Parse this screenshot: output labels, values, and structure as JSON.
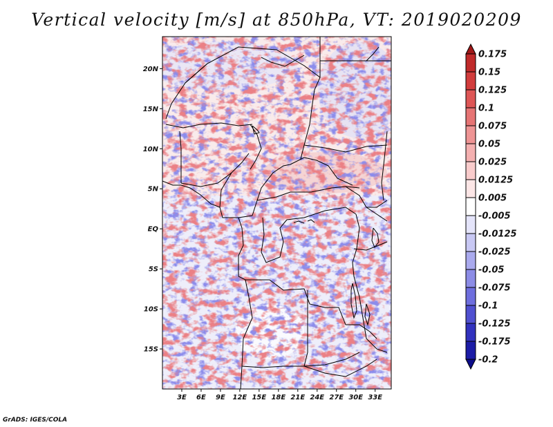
{
  "title": "Vertical velocity [m/s] at 850hPa, VT: 2019020209",
  "credit": "GrADS: IGES/COLA",
  "map": {
    "variable": "Vertical velocity",
    "units": "m/s",
    "level": "850hPa",
    "valid_time": "2019020209",
    "lon_range": [
      0,
      35.5
    ],
    "lat_range": [
      -20,
      24
    ],
    "lat_ticks": [
      {
        "lat": 20,
        "label": "20N"
      },
      {
        "lat": 15,
        "label": "15N"
      },
      {
        "lat": 10,
        "label": "10N"
      },
      {
        "lat": 5,
        "label": "5N"
      },
      {
        "lat": 0,
        "label": "EQ"
      },
      {
        "lat": -5,
        "label": "5S"
      },
      {
        "lat": -10,
        "label": "10S"
      },
      {
        "lat": -15,
        "label": "15S"
      }
    ],
    "lon_ticks": [
      {
        "lon": 3,
        "label": "3E"
      },
      {
        "lon": 6,
        "label": "6E"
      },
      {
        "lon": 9,
        "label": "9E"
      },
      {
        "lon": 12,
        "label": "12E"
      },
      {
        "lon": 15,
        "label": "15E"
      },
      {
        "lon": 18,
        "label": "18E"
      },
      {
        "lon": 21,
        "label": "21E"
      },
      {
        "lon": 24,
        "label": "24E"
      },
      {
        "lon": 27,
        "label": "27E"
      },
      {
        "lon": 30,
        "label": "30E"
      },
      {
        "lon": 33,
        "label": "33E"
      }
    ]
  },
  "colorbar": {
    "labels": [
      "0.175",
      "0.15",
      "0.125",
      "0.1",
      "0.075",
      "0.05",
      "0.025",
      "0.0125",
      "0.005",
      "-0.005",
      "-0.0125",
      "-0.025",
      "-0.05",
      "-0.075",
      "-0.1",
      "-0.125",
      "-0.175",
      "-0.2"
    ],
    "colors": [
      "#a01818",
      "#c02a2a",
      "#d23c3c",
      "#de5656",
      "#e67474",
      "#ee9494",
      "#f4b0b0",
      "#f9cccc",
      "#fce6e6",
      "#ffffff",
      "#e4e4fa",
      "#c8c8f4",
      "#aaaaee",
      "#8c8ce6",
      "#6e6ede",
      "#5050d0",
      "#3232be",
      "#1c1ca6",
      "#0c0c8a"
    ]
  },
  "colors": {
    "positive": "#e88080",
    "negative": "#8888e6",
    "border": "#000000"
  }
}
